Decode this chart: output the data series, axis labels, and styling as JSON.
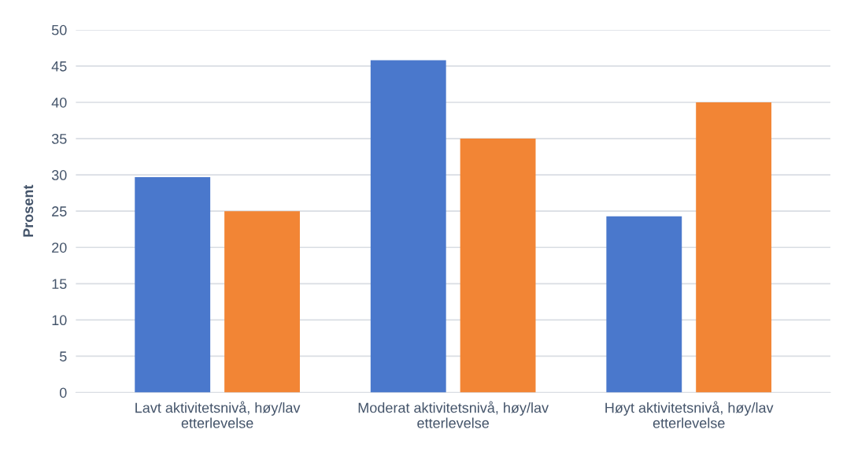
{
  "chart_data": {
    "type": "bar",
    "ylabel": "Prosent",
    "categories": [
      "Lavt aktivitetsnivå, høy/lav etterlevelse",
      "Moderat aktivitetsnivå, høy/lav etterlevelse",
      "Høyt aktivitetsnivå, høy/lav etterlevelse"
    ],
    "series": [
      {
        "color": "#4a78cc",
        "values": [
          29.7,
          45.8,
          24.3
        ]
      },
      {
        "color": "#f28535",
        "values": [
          25,
          35,
          40
        ]
      }
    ],
    "ylim": [
      0,
      50
    ],
    "yticks": [
      0,
      5,
      10,
      15,
      20,
      25,
      30,
      35,
      40,
      45,
      50
    ],
    "grid": "y"
  }
}
